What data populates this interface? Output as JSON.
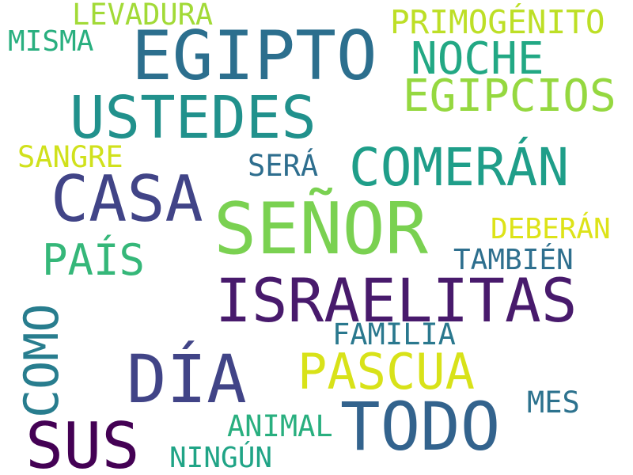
{
  "words": [
    {
      "id": "egipto",
      "text": "EGIPTO",
      "color": "#2c6f8e"
    },
    {
      "id": "senor",
      "text": "SEÑOR",
      "color": "#7ad151"
    },
    {
      "id": "ustedes",
      "text": "USTEDES",
      "color": "#21918c"
    },
    {
      "id": "casa",
      "text": "CASA",
      "color": "#414487"
    },
    {
      "id": "todo",
      "text": "TODO",
      "color": "#33638d"
    },
    {
      "id": "dia",
      "text": "DÍA",
      "color": "#414487"
    },
    {
      "id": "sus",
      "text": "SUS",
      "color": "#440154"
    },
    {
      "id": "israelitas",
      "text": "ISRAELITAS",
      "color": "#481a6c"
    },
    {
      "id": "comeran",
      "text": "COMERÁN",
      "color": "#1f9e89"
    },
    {
      "id": "pascua",
      "text": "PASCUA",
      "color": "#d8e219"
    },
    {
      "id": "como",
      "text": "COMO",
      "color": "#287d8e"
    },
    {
      "id": "egipcios",
      "text": "EGIPCIOS",
      "color": "#95d840"
    },
    {
      "id": "noche",
      "text": "NOCHE",
      "color": "#22a884"
    },
    {
      "id": "pais",
      "text": "PAÍS",
      "color": "#35b779"
    },
    {
      "id": "primogenito",
      "text": "PRIMOGÉNITO",
      "color": "#bddf26"
    },
    {
      "id": "familia",
      "text": "FAMILIA",
      "color": "#2a788e"
    },
    {
      "id": "levadura",
      "text": "LEVADURA",
      "color": "#a2da37"
    },
    {
      "id": "misma",
      "text": "MISMA",
      "color": "#29af7f"
    },
    {
      "id": "sangre",
      "text": "SANGRE",
      "color": "#d0e11c"
    },
    {
      "id": "sera",
      "text": "SERÁ",
      "color": "#2e6e8e"
    },
    {
      "id": "deberan",
      "text": "DEBERÁN",
      "color": "#dde318"
    },
    {
      "id": "tambien",
      "text": "TAMBIÉN",
      "color": "#2e6f8e"
    },
    {
      "id": "animal",
      "text": "ANIMAL",
      "color": "#29af7f"
    },
    {
      "id": "mes",
      "text": "MES",
      "color": "#2c728e"
    },
    {
      "id": "ningun",
      "text": "NINGÚN",
      "color": "#20a486"
    }
  ]
}
